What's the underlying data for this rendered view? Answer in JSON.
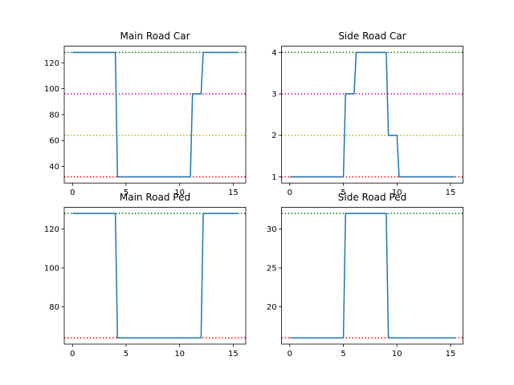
{
  "chart_data": [
    {
      "type": "line",
      "title": "Main Road Car",
      "xlim": [
        -0.77,
        16.17
      ],
      "ylim": [
        27.2,
        132.8
      ],
      "xticks": [
        0,
        5,
        10,
        15
      ],
      "yticks": [
        40,
        60,
        80,
        100,
        120
      ],
      "grid": false,
      "series": [
        {
          "color": "#1f77b4",
          "x": [
            0,
            1,
            2,
            3,
            4,
            4.2,
            5,
            6,
            7,
            8,
            9,
            10,
            11,
            11.2,
            12,
            12.2,
            13,
            14,
            15,
            15.4
          ],
          "y": [
            128,
            128,
            128,
            128,
            128,
            32,
            32,
            32,
            32,
            32,
            32,
            32,
            32,
            96,
            96,
            128,
            128,
            128,
            128,
            128
          ]
        }
      ],
      "reference_lines": [
        {
          "y": 128,
          "color": "#008000"
        },
        {
          "y": 96,
          "color": "#bf00bf"
        },
        {
          "y": 64,
          "color": "#bfbf00"
        },
        {
          "y": 32,
          "color": "#ff0000"
        }
      ]
    },
    {
      "type": "line",
      "title": "Side Road Car",
      "xlim": [
        -0.77,
        16.17
      ],
      "ylim": [
        0.85,
        4.15
      ],
      "xticks": [
        0,
        5,
        10,
        15
      ],
      "yticks": [
        1,
        2,
        3,
        4
      ],
      "grid": false,
      "series": [
        {
          "color": "#1f77b4",
          "x": [
            0,
            1,
            2,
            3,
            4,
            5,
            5.2,
            6,
            6.2,
            7,
            8,
            9,
            9.2,
            10,
            10.2,
            11,
            12,
            13,
            14,
            15,
            15.4
          ],
          "y": [
            1,
            1,
            1,
            1,
            1,
            1,
            3,
            3,
            4,
            4,
            4,
            4,
            2,
            2,
            1,
            1,
            1,
            1,
            1,
            1,
            1
          ]
        }
      ],
      "reference_lines": [
        {
          "y": 4,
          "color": "#008000"
        },
        {
          "y": 3,
          "color": "#bf00bf"
        },
        {
          "y": 2,
          "color": "#bfbf00"
        },
        {
          "y": 1,
          "color": "#ff0000"
        }
      ]
    },
    {
      "type": "line",
      "title": "Main Road Ped",
      "xlim": [
        -0.77,
        16.17
      ],
      "ylim": [
        60.8,
        131.2
      ],
      "xticks": [
        0,
        5,
        10,
        15
      ],
      "yticks": [
        80,
        100,
        120
      ],
      "grid": false,
      "series": [
        {
          "color": "#1f77b4",
          "x": [
            0,
            1,
            2,
            3,
            4,
            4.2,
            5,
            6,
            7,
            8,
            9,
            10,
            11,
            12,
            12.2,
            13,
            14,
            15,
            15.4
          ],
          "y": [
            128,
            128,
            128,
            128,
            128,
            64,
            64,
            64,
            64,
            64,
            64,
            64,
            64,
            64,
            128,
            128,
            128,
            128,
            128
          ]
        }
      ],
      "reference_lines": [
        {
          "y": 128,
          "color": "#008000"
        },
        {
          "y": 64,
          "color": "#ff0000"
        }
      ]
    },
    {
      "type": "line",
      "title": "Side Road Ped",
      "xlim": [
        -0.77,
        16.17
      ],
      "ylim": [
        15.2,
        32.8
      ],
      "xticks": [
        0,
        5,
        10,
        15
      ],
      "yticks": [
        20,
        25,
        30
      ],
      "grid": false,
      "series": [
        {
          "color": "#1f77b4",
          "x": [
            0,
            1,
            2,
            3,
            4,
            5,
            5.2,
            6,
            7,
            8,
            9,
            9.2,
            10,
            11,
            12,
            13,
            14,
            15,
            15.4
          ],
          "y": [
            16,
            16,
            16,
            16,
            16,
            16,
            32,
            32,
            32,
            32,
            32,
            16,
            16,
            16,
            16,
            16,
            16,
            16,
            16
          ]
        }
      ],
      "reference_lines": [
        {
          "y": 32,
          "color": "#008000"
        },
        {
          "y": 16,
          "color": "#ff0000"
        }
      ]
    }
  ]
}
